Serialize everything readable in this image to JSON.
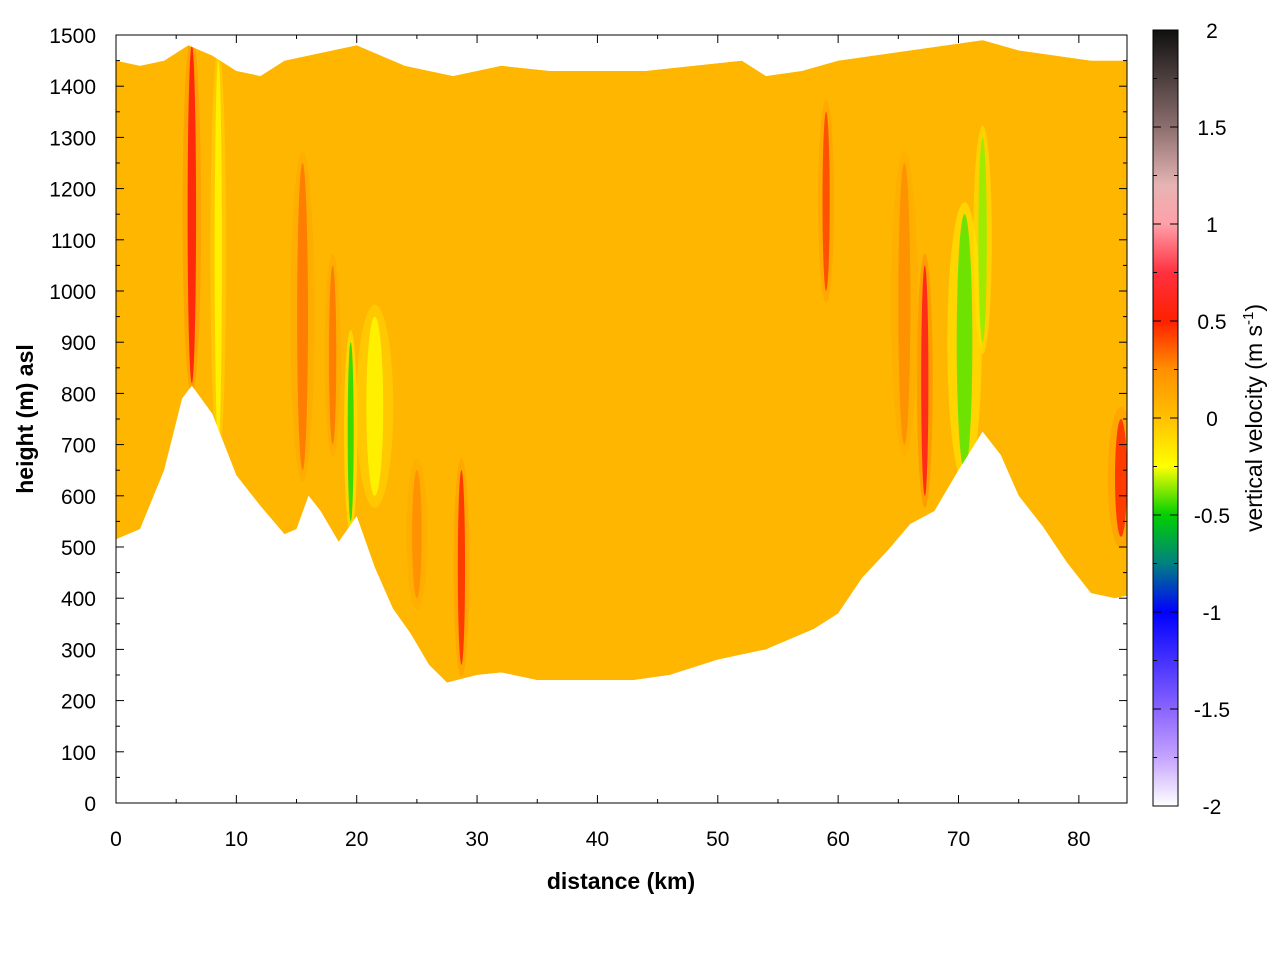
{
  "chart_data": {
    "type": "heatmap",
    "xlabel": "distance (km)",
    "ylabel": "height (m) asl",
    "xlim": [
      0,
      84
    ],
    "ylim": [
      0,
      1500
    ],
    "x_ticks": [
      0,
      10,
      20,
      30,
      40,
      50,
      60,
      70,
      80
    ],
    "y_ticks": [
      0,
      100,
      200,
      300,
      400,
      500,
      600,
      700,
      800,
      900,
      1000,
      1100,
      1200,
      1300,
      1400,
      1500
    ],
    "grid": true,
    "colorbar": {
      "label": "vertical velocity (m s",
      "label_superscript": "-1",
      "label_suffix": ")",
      "range": [
        -2,
        2
      ],
      "ticks": [
        "2",
        "1.5",
        "1",
        "0.5",
        "0",
        "-0.5",
        "-1",
        "-1.5",
        "-2"
      ],
      "tick_values": [
        2,
        1.5,
        1,
        0.5,
        0,
        -0.5,
        -1,
        -1.5,
        -2
      ],
      "stops": [
        {
          "value": 2.0,
          "color": "#101010"
        },
        {
          "value": 1.5,
          "color": "#8c6e6e"
        },
        {
          "value": 1.2,
          "color": "#e6b4b4"
        },
        {
          "value": 1.0,
          "color": "#ffa0a8"
        },
        {
          "value": 0.75,
          "color": "#ff3040"
        },
        {
          "value": 0.5,
          "color": "#ff2000"
        },
        {
          "value": 0.25,
          "color": "#ff9000"
        },
        {
          "value": 0.0,
          "color": "#ffc000"
        },
        {
          "value": -0.25,
          "color": "#ffff00"
        },
        {
          "value": -0.5,
          "color": "#00d000"
        },
        {
          "value": -0.75,
          "color": "#008080"
        },
        {
          "value": -1.0,
          "color": "#0000ff"
        },
        {
          "value": -1.5,
          "color": "#8a64ff"
        },
        {
          "value": -1.75,
          "color": "#c4a4ff"
        },
        {
          "value": -2.0,
          "color": "#ffffff"
        }
      ]
    },
    "terrain": [
      [
        0,
        515
      ],
      [
        2,
        535
      ],
      [
        4,
        650
      ],
      [
        5.5,
        790
      ],
      [
        6.3,
        815
      ],
      [
        8,
        760
      ],
      [
        10,
        640
      ],
      [
        12,
        580
      ],
      [
        14,
        525
      ],
      [
        15,
        535
      ],
      [
        16,
        600
      ],
      [
        17,
        570
      ],
      [
        18.5,
        510
      ],
      [
        20,
        560
      ],
      [
        21.5,
        460
      ],
      [
        23,
        380
      ],
      [
        24.5,
        330
      ],
      [
        26,
        270
      ],
      [
        27.5,
        235
      ],
      [
        30,
        250
      ],
      [
        32,
        255
      ],
      [
        35,
        240
      ],
      [
        40,
        240
      ],
      [
        43,
        240
      ],
      [
        46,
        250
      ],
      [
        50,
        280
      ],
      [
        54,
        300
      ],
      [
        58,
        340
      ],
      [
        60,
        370
      ],
      [
        62,
        440
      ],
      [
        64,
        490
      ],
      [
        66,
        545
      ],
      [
        68,
        570
      ],
      [
        70,
        650
      ],
      [
        72,
        725
      ],
      [
        73.5,
        680
      ],
      [
        75,
        600
      ],
      [
        77,
        540
      ],
      [
        79,
        470
      ],
      [
        81,
        410
      ],
      [
        83,
        400
      ],
      [
        84,
        405
      ]
    ],
    "top_height": [
      [
        0,
        1450
      ],
      [
        2,
        1440
      ],
      [
        4,
        1450
      ],
      [
        6,
        1480
      ],
      [
        8,
        1460
      ],
      [
        10,
        1430
      ],
      [
        12,
        1420
      ],
      [
        14,
        1450
      ],
      [
        16,
        1460
      ],
      [
        18,
        1470
      ],
      [
        20,
        1480
      ],
      [
        22,
        1460
      ],
      [
        24,
        1440
      ],
      [
        26,
        1430
      ],
      [
        28,
        1420
      ],
      [
        32,
        1440
      ],
      [
        36,
        1430
      ],
      [
        40,
        1430
      ],
      [
        44,
        1430
      ],
      [
        48,
        1440
      ],
      [
        52,
        1450
      ],
      [
        54,
        1420
      ],
      [
        57,
        1430
      ],
      [
        60,
        1450
      ],
      [
        63,
        1460
      ],
      [
        66,
        1470
      ],
      [
        69,
        1480
      ],
      [
        72,
        1490
      ],
      [
        75,
        1470
      ],
      [
        78,
        1460
      ],
      [
        81,
        1450
      ],
      [
        84,
        1450
      ]
    ],
    "features": [
      {
        "x": 6.3,
        "z_min": 820,
        "z_max": 1480,
        "width": 0.7,
        "w": 0.55
      },
      {
        "x": 8.5,
        "z_min": 700,
        "z_max": 1450,
        "width": 0.6,
        "w": -0.2
      },
      {
        "x": 15.5,
        "z_min": 650,
        "z_max": 1250,
        "width": 0.9,
        "w": 0.3
      },
      {
        "x": 18,
        "z_min": 700,
        "z_max": 1050,
        "width": 0.6,
        "w": 0.3
      },
      {
        "x": 19.5,
        "z_min": 550,
        "z_max": 900,
        "width": 0.5,
        "w": -0.45
      },
      {
        "x": 21.5,
        "z_min": 600,
        "z_max": 950,
        "width": 1.4,
        "w": -0.2
      },
      {
        "x": 25,
        "z_min": 400,
        "z_max": 650,
        "width": 0.8,
        "w": 0.25
      },
      {
        "x": 28.7,
        "z_min": 270,
        "z_max": 650,
        "width": 0.6,
        "w": 0.45
      },
      {
        "x": 59,
        "z_min": 1000,
        "z_max": 1350,
        "width": 0.6,
        "w": 0.4
      },
      {
        "x": 65.5,
        "z_min": 700,
        "z_max": 1250,
        "width": 1.0,
        "w": 0.25
      },
      {
        "x": 67.2,
        "z_min": 600,
        "z_max": 1050,
        "width": 0.6,
        "w": 0.6
      },
      {
        "x": 70.5,
        "z_min": 650,
        "z_max": 1150,
        "width": 1.3,
        "w": -0.4
      },
      {
        "x": 72,
        "z_min": 900,
        "z_max": 1300,
        "width": 0.7,
        "w": -0.35
      },
      {
        "x": 83.5,
        "z_min": 520,
        "z_max": 750,
        "width": 1.0,
        "w": 0.45
      }
    ]
  }
}
